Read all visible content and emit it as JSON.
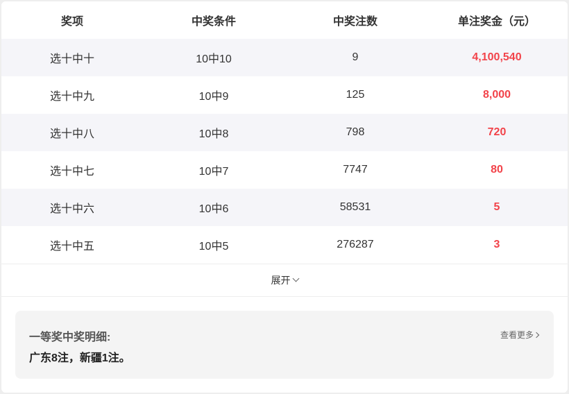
{
  "table": {
    "headers": [
      "奖项",
      "中奖条件",
      "中奖注数",
      "单注奖金（元）"
    ],
    "rows": [
      [
        "选十中十",
        "10中10",
        "9",
        "4,100,540"
      ],
      [
        "选十中九",
        "10中9",
        "125",
        "8,000"
      ],
      [
        "选十中八",
        "10中8",
        "798",
        "720"
      ],
      [
        "选十中七",
        "10中7",
        "7747",
        "80"
      ],
      [
        "选十中六",
        "10中6",
        "58531",
        "5"
      ],
      [
        "选十中五",
        "10中5",
        "276287",
        "3"
      ]
    ]
  },
  "expand_label": "展开",
  "details": {
    "title": "一等奖中奖明细:",
    "body": "广东8注，新疆1注。",
    "more_label": "查看更多"
  },
  "colors": {
    "prize": "#f2434a",
    "alt_row": "#f5f5f9"
  }
}
